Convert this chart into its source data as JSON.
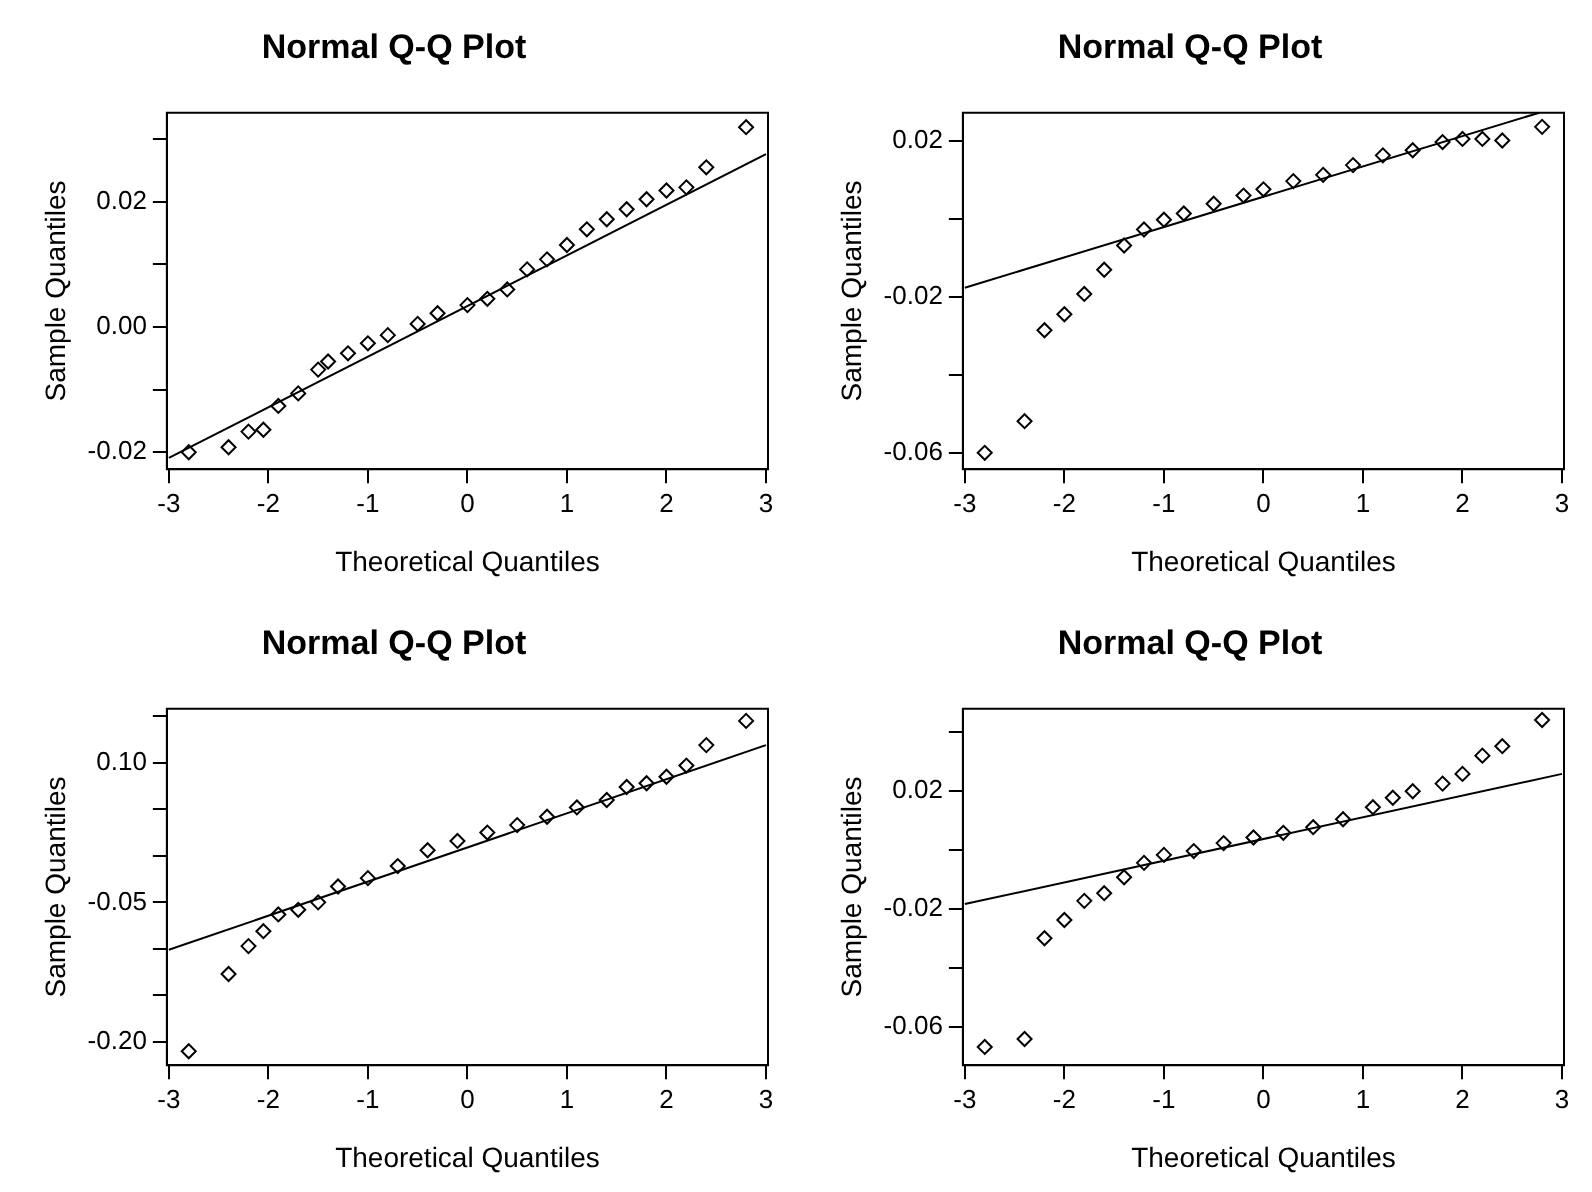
{
  "chart_data": [
    {
      "type": "scatter",
      "title": "Normal Q-Q Plot",
      "xlabel": "Theoretical Quantiles",
      "ylabel": "Sample Quantiles",
      "xlim": [
        -3.02,
        3.02
      ],
      "xticks": [
        -3,
        -2,
        -1,
        0,
        1,
        2,
        3
      ],
      "ylim": [
        -0.0227,
        0.0342
      ],
      "yticks": [
        -0.02,
        {
          "value": -0.01,
          "label": null
        },
        {
          "value": 0,
          "label": "0.00"
        },
        {
          "value": 0.01,
          "label": null
        },
        0.02,
        {
          "value": 0.03,
          "label": null
        }
      ],
      "grid": false,
      "legend": false,
      "series": [
        {
          "marker": "diamond",
          "color": "#000000",
          "x": [
            -2.8,
            -2.4,
            -2.2,
            -2.05,
            -1.9,
            -1.7,
            -1.5,
            -1.4,
            -1.2,
            -1.0,
            -0.8,
            -0.5,
            -0.3,
            0,
            0.2,
            0.4,
            0.6,
            0.8,
            1.0,
            1.2,
            1.4,
            1.6,
            1.8,
            2.0,
            2.2,
            2.4,
            2.8
          ],
          "values": [
            -0.02,
            -0.0192,
            -0.0167,
            -0.0164,
            -0.0126,
            -0.0106,
            -0.0068,
            -0.0055,
            -0.0042,
            -0.0026,
            -0.0013,
            0.0005,
            0.0022,
            0.0035,
            0.0045,
            0.006,
            0.0092,
            0.0108,
            0.0131,
            0.0156,
            0.0172,
            0.0188,
            0.0204,
            0.0218,
            0.0223,
            0.0255,
            0.0319
          ]
        },
        {
          "type": "line",
          "marker": "none",
          "color": "#000000",
          "x": [
            -3,
            3
          ],
          "values": [
            -0.0209,
            0.0276
          ]
        }
      ]
    },
    {
      "type": "scatter",
      "title": "Normal Q-Q Plot",
      "xlabel": "Theoretical Quantiles",
      "ylabel": "Sample Quantiles",
      "xlim": [
        -3.02,
        3.02
      ],
      "xticks": [
        -3,
        -2,
        -1,
        0,
        1,
        2,
        3
      ],
      "ylim": [
        -0.0642,
        0.0271
      ],
      "yticks": [
        {
          "value": -0.06,
          "label": "-0.06"
        },
        {
          "value": -0.04,
          "label": null
        },
        -0.02,
        {
          "value": 0,
          "label": null
        },
        0.02
      ],
      "grid": false,
      "legend": false,
      "series": [
        {
          "marker": "diamond",
          "color": "#000000",
          "x": [
            -2.8,
            -2.4,
            -2.2,
            -2.0,
            -1.8,
            -1.6,
            -1.4,
            -1.2,
            -1.0,
            -0.8,
            -0.5,
            -0.2,
            0,
            0.3,
            0.6,
            0.9,
            1.2,
            1.5,
            1.8,
            2.0,
            2.2,
            2.4,
            2.8
          ],
          "values": [
            -0.06,
            -0.0519,
            -0.0286,
            -0.0245,
            -0.0193,
            -0.0131,
            -0.0069,
            -0.0028,
            -0.0003,
            0.0013,
            0.0038,
            0.0059,
            0.0075,
            0.0096,
            0.0112,
            0.0137,
            0.0162,
            0.0175,
            0.0196,
            0.0204,
            0.0204,
            0.02,
            0.0235
          ]
        },
        {
          "type": "line",
          "marker": "none",
          "color": "#000000",
          "x": [
            -3,
            2.77
          ],
          "values": [
            -0.0177,
            0.0271
          ]
        }
      ]
    },
    {
      "type": "scatter",
      "title": "Normal Q-Q Plot",
      "xlabel": "Theoretical Quantiles",
      "ylabel": "Sample Quantiles",
      "xlim": [
        -3.02,
        3.02
      ],
      "xticks": [
        -3,
        -2,
        -1,
        0,
        1,
        2,
        3
      ],
      "ylim": [
        -0.225,
        0.158
      ],
      "yticks": [
        {
          "value": -0.2,
          "label": "-0.20"
        },
        {
          "value": -0.15,
          "label": null
        },
        {
          "value": -0.1,
          "label": null
        },
        -0.05,
        {
          "value": 0,
          "label": null
        },
        {
          "value": 0.05,
          "label": null
        },
        {
          "value": 0.1,
          "label": "0.10"
        },
        {
          "value": 0.15,
          "label": null
        }
      ],
      "grid": false,
      "legend": false,
      "series": [
        {
          "marker": "diamond",
          "color": "#000000",
          "x": [
            -2.8,
            -2.4,
            -2.2,
            -2.05,
            -1.9,
            -1.7,
            -1.5,
            -1.3,
            -1.0,
            -0.7,
            -0.4,
            -0.1,
            0.2,
            0.5,
            0.8,
            1.1,
            1.4,
            1.6,
            1.8,
            2.0,
            2.2,
            2.4,
            2.8
          ],
          "values": [
            -0.21,
            -0.127,
            -0.097,
            -0.081,
            -0.063,
            -0.058,
            -0.05,
            -0.033,
            -0.024,
            -0.011,
            0.006,
            0.016,
            0.025,
            0.033,
            0.042,
            0.052,
            0.06,
            0.074,
            0.078,
            0.085,
            0.097,
            0.119,
            0.145
          ]
        },
        {
          "type": "line",
          "marker": "none",
          "color": "#000000",
          "x": [
            -3,
            3
          ],
          "values": [
            -0.101,
            0.119
          ]
        }
      ]
    },
    {
      "type": "scatter",
      "title": "Normal Q-Q Plot",
      "xlabel": "Theoretical Quantiles",
      "ylabel": "Sample Quantiles",
      "xlim": [
        -3.02,
        3.02
      ],
      "xticks": [
        -3,
        -2,
        -1,
        0,
        1,
        2,
        3
      ],
      "ylim": [
        -0.073,
        0.048
      ],
      "yticks": [
        {
          "value": -0.06,
          "label": "-0.06"
        },
        {
          "value": -0.04,
          "label": null
        },
        -0.02,
        {
          "value": 0,
          "label": null
        },
        0.02,
        {
          "value": 0.04,
          "label": null
        }
      ],
      "grid": false,
      "legend": false,
      "series": [
        {
          "marker": "diamond",
          "color": "#000000",
          "x": [
            -2.8,
            -2.4,
            -2.2,
            -2.0,
            -1.8,
            -1.6,
            -1.4,
            -1.2,
            -1.0,
            -0.7,
            -0.4,
            -0.1,
            0.2,
            0.5,
            0.8,
            1.1,
            1.3,
            1.5,
            1.8,
            2.0,
            2.2,
            2.4,
            2.8
          ],
          "values": [
            -0.0668,
            -0.0641,
            -0.0299,
            -0.0237,
            -0.0172,
            -0.0146,
            -0.0092,
            -0.0043,
            -0.0016,
            -0.0003,
            0.0024,
            0.0043,
            0.0059,
            0.0078,
            0.0105,
            0.0146,
            0.0178,
            0.02,
            0.0226,
            0.0259,
            0.0321,
            0.0353,
            0.0442
          ]
        },
        {
          "type": "line",
          "marker": "none",
          "color": "#000000",
          "x": [
            -3,
            3
          ],
          "values": [
            -0.0183,
            0.0259
          ]
        }
      ]
    }
  ]
}
